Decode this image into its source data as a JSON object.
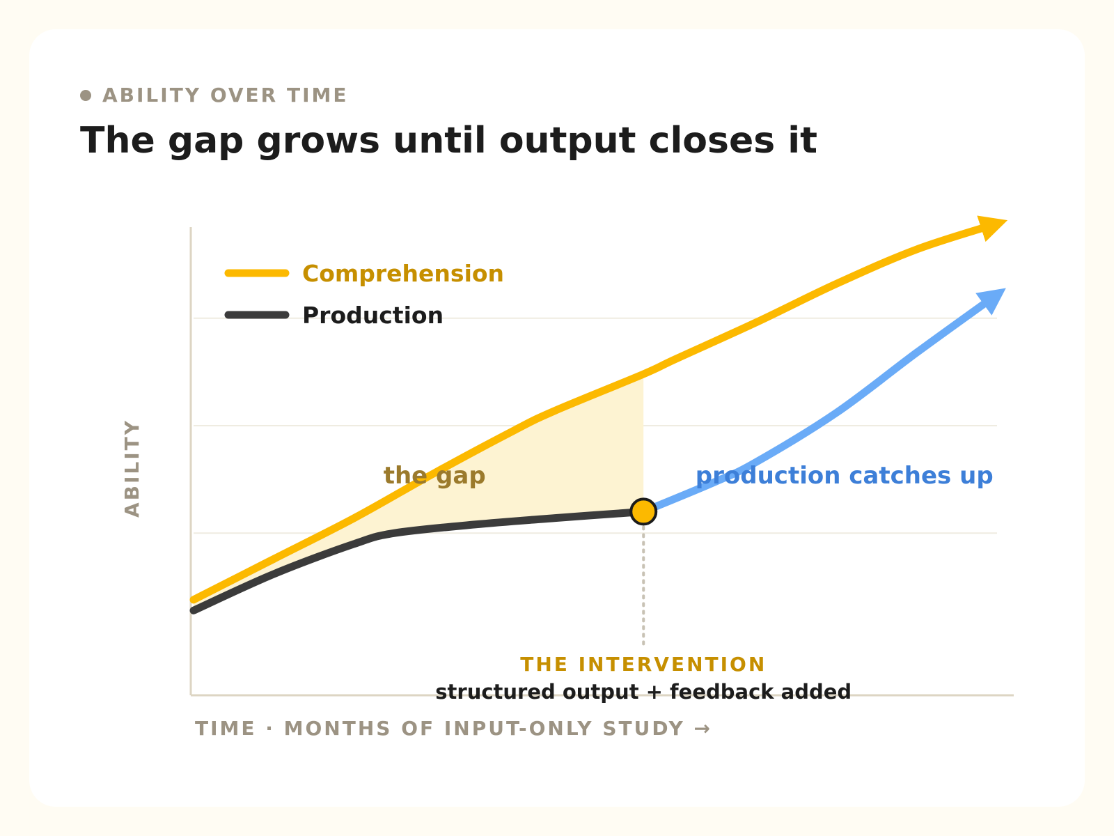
{
  "header": {
    "eyebrow": "ABILITY OVER TIME",
    "title": "The gap grows until output closes it"
  },
  "colors": {
    "comprehension": "#fcb900",
    "production": "#3b3b3b",
    "catch_up": "#6aabf7",
    "gap_fill": "#fdf3d2",
    "gap_label": "#9b7a2c",
    "catch_up_label": "#3d7fd8",
    "intervention_label": "#c68f00",
    "axis": "#ddd5c3",
    "grid": "#efece1",
    "muted_text": "#9c9383"
  },
  "chart_data": {
    "type": "line",
    "title": "The gap grows until output closes it",
    "xlabel": "TIME · MONTHS OF INPUT-ONLY STUDY →",
    "ylabel": "ABILITY",
    "x_ticks": "none",
    "y_ticks": "none",
    "xlim": [
      0,
      100
    ],
    "ylim": [
      0,
      100
    ],
    "grid": "horizontal, at y = 28, 53, 78",
    "legend": {
      "placement": "top-left",
      "entries": [
        "Comprehension",
        "Production"
      ]
    },
    "series": [
      {
        "name": "Comprehension",
        "x": [
          0,
          10,
          20,
          30,
          40,
          45,
          56,
          60,
          70,
          80,
          90,
          100
        ],
        "y": [
          12.5,
          22,
          31.5,
          42,
          52,
          56.5,
          65,
          68.5,
          77,
          86,
          94,
          100
        ],
        "end_marker": "arrow"
      },
      {
        "name": "Production",
        "x": [
          0,
          10,
          20,
          25,
          35,
          45,
          56
        ],
        "y": [
          10,
          18.5,
          25.5,
          28,
          30,
          31.5,
          33
        ]
      },
      {
        "name": "production catches up",
        "x": [
          56,
          65,
          70,
          80,
          90,
          100
        ],
        "y": [
          33,
          40,
          44.5,
          56,
          70,
          83.5
        ],
        "end_marker": "arrow"
      }
    ],
    "shaded_regions": [
      {
        "label": "the gap",
        "between": [
          "Comprehension",
          "Production"
        ],
        "x_range": [
          0,
          56
        ]
      }
    ],
    "annotations": [
      {
        "type": "point",
        "x": 56,
        "y": 33
      },
      {
        "type": "text",
        "text": "the gap",
        "x": 30,
        "y": 41.5
      },
      {
        "type": "text",
        "text": "production catches up",
        "x": 81,
        "y": 41.5
      },
      {
        "type": "text",
        "title": "THE INTERVENTION",
        "text": "structured output + feedback added",
        "x": 56
      }
    ]
  }
}
